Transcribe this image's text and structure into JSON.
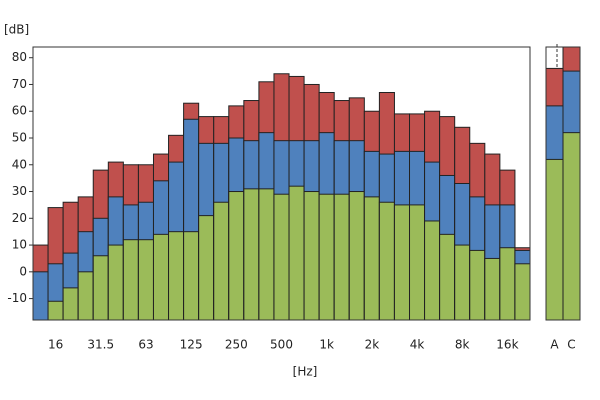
{
  "chart_data": [
    {
      "type": "bar",
      "ylabel": "[dB]",
      "xlabel": "[Hz]",
      "categories": [
        null,
        "16",
        null,
        null,
        "31.5",
        null,
        null,
        "63",
        null,
        null,
        "125",
        null,
        null,
        "250",
        null,
        null,
        "500",
        null,
        null,
        "1k",
        null,
        null,
        "2k",
        null,
        null,
        "4k",
        null,
        null,
        "8k",
        null,
        null,
        "16k",
        null
      ],
      "series": [
        {
          "color": "#c0504d",
          "values": [
            10,
            24,
            26,
            28,
            38,
            41,
            40,
            40,
            44,
            51,
            63,
            58,
            58,
            62,
            64,
            71,
            74,
            73,
            70,
            67,
            64,
            65,
            60,
            67,
            59,
            59,
            60,
            58,
            54,
            48,
            44,
            38,
            9
          ]
        },
        {
          "color": "#4f81bd",
          "values": [
            0,
            3,
            7,
            15,
            20,
            28,
            25,
            26,
            34,
            41,
            57,
            48,
            48,
            50,
            49,
            52,
            49,
            49,
            49,
            52,
            49,
            49,
            45,
            44,
            45,
            45,
            41,
            36,
            33,
            28,
            25,
            25,
            8
          ]
        },
        {
          "color": "#9bbb59",
          "values": [
            -18,
            -11,
            -6,
            0,
            6,
            10,
            12,
            12,
            14,
            15,
            15,
            21,
            26,
            30,
            31,
            31,
            29,
            32,
            30,
            29,
            29,
            30,
            28,
            26,
            25,
            25,
            19,
            14,
            10,
            8,
            5,
            9,
            3
          ]
        }
      ],
      "ylim": [
        -18,
        84
      ],
      "yticks": [
        -10,
        0,
        10,
        20,
        30,
        40,
        50,
        60,
        70,
        80
      ]
    },
    {
      "type": "bar",
      "categories": [
        "A",
        "C"
      ],
      "series": [
        {
          "color": "#c0504d",
          "values": [
            76,
            84
          ]
        },
        {
          "color": "#4f81bd",
          "values": [
            62,
            75
          ]
        },
        {
          "color": "#9bbb59",
          "values": [
            42,
            52
          ]
        }
      ],
      "ylim": [
        -18,
        84
      ]
    }
  ]
}
